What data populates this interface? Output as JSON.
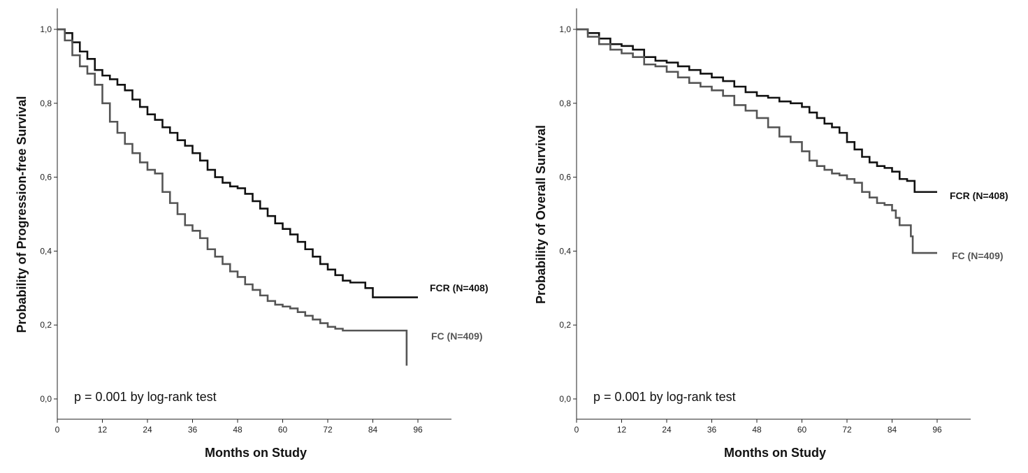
{
  "chart_data": [
    {
      "type": "line",
      "subtype": "kaplan-meier",
      "title": "",
      "xlabel": "Months on Study",
      "ylabel": "Probability of Progression-free Survival",
      "xlim": [
        0,
        105
      ],
      "ylim": [
        0,
        1.0
      ],
      "x_ticks": [
        0,
        12,
        24,
        36,
        48,
        60,
        72,
        84,
        96
      ],
      "x_tick_labels": [
        "0",
        "12",
        "24",
        "36",
        "48",
        "60",
        "72",
        "84",
        "96"
      ],
      "y_ticks": [
        0,
        0.2,
        0.4,
        0.6,
        0.8,
        1.0
      ],
      "y_tick_labels": [
        "0,0",
        "0,2",
        "0,4",
        "0,6",
        "0,8",
        "1,0"
      ],
      "annotation": "p = 0.001 by log-rank test",
      "series": [
        {
          "name": "FCR (N=408)",
          "color": "#111111",
          "points": [
            [
              0,
              1.0
            ],
            [
              2,
              0.99
            ],
            [
              4,
              0.965
            ],
            [
              6,
              0.94
            ],
            [
              8,
              0.92
            ],
            [
              10,
              0.89
            ],
            [
              12,
              0.875
            ],
            [
              14,
              0.865
            ],
            [
              16,
              0.85
            ],
            [
              18,
              0.835
            ],
            [
              20,
              0.81
            ],
            [
              22,
              0.79
            ],
            [
              24,
              0.77
            ],
            [
              26,
              0.755
            ],
            [
              28,
              0.735
            ],
            [
              30,
              0.72
            ],
            [
              32,
              0.7
            ],
            [
              34,
              0.685
            ],
            [
              36,
              0.665
            ],
            [
              38,
              0.645
            ],
            [
              40,
              0.62
            ],
            [
              42,
              0.6
            ],
            [
              44,
              0.585
            ],
            [
              46,
              0.575
            ],
            [
              48,
              0.57
            ],
            [
              50,
              0.555
            ],
            [
              52,
              0.535
            ],
            [
              54,
              0.515
            ],
            [
              56,
              0.495
            ],
            [
              58,
              0.475
            ],
            [
              60,
              0.46
            ],
            [
              62,
              0.445
            ],
            [
              64,
              0.425
            ],
            [
              66,
              0.405
            ],
            [
              68,
              0.385
            ],
            [
              70,
              0.365
            ],
            [
              72,
              0.35
            ],
            [
              74,
              0.335
            ],
            [
              76,
              0.32
            ],
            [
              78,
              0.315
            ],
            [
              80,
              0.315
            ],
            [
              82,
              0.3
            ],
            [
              83,
              0.3
            ],
            [
              84,
              0.275
            ],
            [
              96,
              0.275
            ]
          ]
        },
        {
          "name": "FC (N=409)",
          "color": "#555555",
          "points": [
            [
              0,
              1.0
            ],
            [
              2,
              0.97
            ],
            [
              4,
              0.93
            ],
            [
              6,
              0.9
            ],
            [
              8,
              0.88
            ],
            [
              10,
              0.85
            ],
            [
              12,
              0.8
            ],
            [
              14,
              0.75
            ],
            [
              16,
              0.72
            ],
            [
              18,
              0.69
            ],
            [
              20,
              0.665
            ],
            [
              22,
              0.64
            ],
            [
              24,
              0.62
            ],
            [
              26,
              0.61
            ],
            [
              28,
              0.56
            ],
            [
              30,
              0.53
            ],
            [
              32,
              0.5
            ],
            [
              34,
              0.47
            ],
            [
              36,
              0.455
            ],
            [
              38,
              0.435
            ],
            [
              40,
              0.405
            ],
            [
              42,
              0.385
            ],
            [
              44,
              0.365
            ],
            [
              46,
              0.345
            ],
            [
              48,
              0.33
            ],
            [
              50,
              0.31
            ],
            [
              52,
              0.295
            ],
            [
              54,
              0.28
            ],
            [
              56,
              0.265
            ],
            [
              58,
              0.255
            ],
            [
              60,
              0.25
            ],
            [
              62,
              0.245
            ],
            [
              64,
              0.235
            ],
            [
              66,
              0.225
            ],
            [
              68,
              0.215
            ],
            [
              70,
              0.205
            ],
            [
              72,
              0.195
            ],
            [
              74,
              0.19
            ],
            [
              76,
              0.185
            ],
            [
              80,
              0.185
            ],
            [
              88,
              0.185
            ],
            [
              93,
              0.185
            ],
            [
              93,
              0.09
            ]
          ]
        }
      ]
    },
    {
      "type": "line",
      "subtype": "kaplan-meier",
      "title": "",
      "xlabel": "Months on Study",
      "ylabel": "Probability of Overall Survival",
      "xlim": [
        0,
        105
      ],
      "ylim": [
        0,
        1.0
      ],
      "x_ticks": [
        0,
        12,
        24,
        36,
        48,
        60,
        72,
        84,
        96
      ],
      "x_tick_labels": [
        "0",
        "12",
        "24",
        "36",
        "48",
        "60",
        "72",
        "84",
        "96"
      ],
      "y_ticks": [
        0,
        0.2,
        0.4,
        0.6,
        0.8,
        1.0
      ],
      "y_tick_labels": [
        "0,0",
        "0,2",
        "0,4",
        "0,6",
        "0,8",
        "1,0"
      ],
      "annotation": "p = 0.001 by log-rank test",
      "series": [
        {
          "name": "FCR (N=408)",
          "color": "#111111",
          "points": [
            [
              0,
              1.0
            ],
            [
              3,
              0.99
            ],
            [
              6,
              0.975
            ],
            [
              9,
              0.96
            ],
            [
              12,
              0.955
            ],
            [
              15,
              0.945
            ],
            [
              18,
              0.925
            ],
            [
              21,
              0.915
            ],
            [
              24,
              0.91
            ],
            [
              27,
              0.9
            ],
            [
              30,
              0.89
            ],
            [
              33,
              0.88
            ],
            [
              36,
              0.87
            ],
            [
              39,
              0.86
            ],
            [
              42,
              0.845
            ],
            [
              45,
              0.83
            ],
            [
              48,
              0.82
            ],
            [
              51,
              0.815
            ],
            [
              54,
              0.805
            ],
            [
              57,
              0.8
            ],
            [
              60,
              0.79
            ],
            [
              62,
              0.775
            ],
            [
              64,
              0.76
            ],
            [
              66,
              0.745
            ],
            [
              68,
              0.735
            ],
            [
              70,
              0.72
            ],
            [
              72,
              0.695
            ],
            [
              74,
              0.675
            ],
            [
              76,
              0.655
            ],
            [
              78,
              0.64
            ],
            [
              80,
              0.63
            ],
            [
              82,
              0.625
            ],
            [
              84,
              0.615
            ],
            [
              86,
              0.595
            ],
            [
              88,
              0.59
            ],
            [
              89,
              0.59
            ],
            [
              90,
              0.56
            ],
            [
              96,
              0.56
            ]
          ]
        },
        {
          "name": "FC (N=409)",
          "color": "#555555",
          "points": [
            [
              0,
              1.0
            ],
            [
              3,
              0.98
            ],
            [
              6,
              0.96
            ],
            [
              9,
              0.945
            ],
            [
              12,
              0.935
            ],
            [
              15,
              0.925
            ],
            [
              18,
              0.905
            ],
            [
              21,
              0.9
            ],
            [
              24,
              0.885
            ],
            [
              27,
              0.87
            ],
            [
              30,
              0.855
            ],
            [
              33,
              0.845
            ],
            [
              36,
              0.835
            ],
            [
              39,
              0.82
            ],
            [
              42,
              0.795
            ],
            [
              45,
              0.78
            ],
            [
              48,
              0.76
            ],
            [
              51,
              0.735
            ],
            [
              54,
              0.71
            ],
            [
              57,
              0.695
            ],
            [
              60,
              0.67
            ],
            [
              62,
              0.645
            ],
            [
              64,
              0.63
            ],
            [
              66,
              0.62
            ],
            [
              68,
              0.61
            ],
            [
              70,
              0.605
            ],
            [
              72,
              0.595
            ],
            [
              74,
              0.585
            ],
            [
              76,
              0.56
            ],
            [
              78,
              0.545
            ],
            [
              80,
              0.53
            ],
            [
              82,
              0.525
            ],
            [
              84,
              0.51
            ],
            [
              85,
              0.49
            ],
            [
              86,
              0.47
            ],
            [
              88,
              0.47
            ],
            [
              89,
              0.44
            ],
            [
              89.5,
              0.395
            ],
            [
              96,
              0.395
            ]
          ]
        }
      ]
    }
  ]
}
